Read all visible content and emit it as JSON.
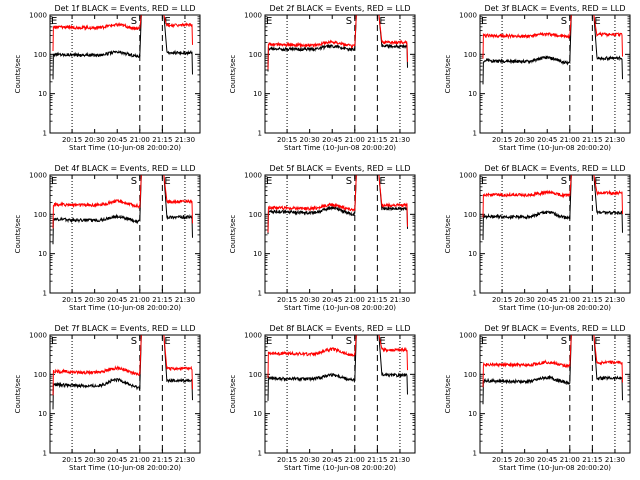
{
  "figure": {
    "background": "#ffffff",
    "ylabel": "Counts/sec",
    "xlabel": "Start Time (10-Jun-08 20:00:20)",
    "xtick_labels": [
      "20:15",
      "20:30",
      "20:45",
      "21:00",
      "21:15",
      "21:30"
    ],
    "ytick_labels": [
      "1",
      "10",
      "100",
      "1000"
    ],
    "marker_S": "S",
    "marker_E": "E",
    "events_color": "#000000",
    "lld_color": "#ff0000"
  },
  "chart_data": [
    {
      "type": "line",
      "title": "Det 1f BLACK = Events, RED = LLD",
      "xlim": [
        "20:00:20",
        "21:40"
      ],
      "ylim": [
        1,
        1000
      ],
      "yscale": "log",
      "grid": false,
      "series": [
        {
          "name": "Events",
          "values_level": [
            100,
            90,
            110
          ]
        },
        {
          "name": "LLD",
          "values_level": [
            500,
            450,
            550
          ]
        }
      ],
      "dotted_lines": [
        "20:15",
        "21:30"
      ],
      "dashed_lines": [
        "21:00",
        "21:15"
      ]
    },
    {
      "type": "line",
      "title": "Det 2f BLACK = Events, RED = LLD",
      "xlim": [
        "20:00:20",
        "21:40"
      ],
      "ylim": [
        1,
        1000
      ],
      "yscale": "log",
      "grid": false,
      "series": [
        {
          "name": "Events",
          "values_level": [
            140,
            130,
            160
          ]
        },
        {
          "name": "LLD",
          "values_level": [
            180,
            160,
            200
          ]
        }
      ],
      "dotted_lines": [
        "20:15",
        "21:30"
      ],
      "dashed_lines": [
        "21:00",
        "21:15"
      ]
    },
    {
      "type": "line",
      "title": "Det 3f BLACK = Events, RED = LLD",
      "xlim": [
        "20:00:20",
        "21:40"
      ],
      "ylim": [
        1,
        1000
      ],
      "yscale": "log",
      "grid": false,
      "series": [
        {
          "name": "Events",
          "values_level": [
            70,
            60,
            80
          ]
        },
        {
          "name": "LLD",
          "values_level": [
            300,
            280,
            320
          ]
        }
      ],
      "dotted_lines": [
        "20:15",
        "21:30"
      ],
      "dashed_lines": [
        "21:00",
        "21:15"
      ]
    },
    {
      "type": "line",
      "title": "Det 4f BLACK = Events, RED = LLD",
      "xlim": [
        "20:00:20",
        "21:40"
      ],
      "ylim": [
        1,
        1000
      ],
      "yscale": "log",
      "grid": false,
      "series": [
        {
          "name": "Events",
          "values_level": [
            75,
            65,
            85
          ]
        },
        {
          "name": "LLD",
          "values_level": [
            180,
            160,
            210
          ]
        }
      ],
      "dotted_lines": [
        "20:15",
        "21:30"
      ],
      "dashed_lines": [
        "21:00",
        "21:15"
      ]
    },
    {
      "type": "line",
      "title": "Det 5f BLACK = Events, RED = LLD",
      "xlim": [
        "20:00:20",
        "21:40"
      ],
      "ylim": [
        1,
        1000
      ],
      "yscale": "log",
      "grid": false,
      "series": [
        {
          "name": "Events",
          "values_level": [
            120,
            100,
            140
          ]
        },
        {
          "name": "LLD",
          "values_level": [
            150,
            130,
            170
          ]
        }
      ],
      "dotted_lines": [
        "20:15",
        "21:30"
      ],
      "dashed_lines": [
        "21:00",
        "21:15"
      ]
    },
    {
      "type": "line",
      "title": "Det 6f BLACK = Events, RED = LLD",
      "xlim": [
        "20:00:20",
        "21:40"
      ],
      "ylim": [
        1,
        1000
      ],
      "yscale": "log",
      "grid": false,
      "series": [
        {
          "name": "Events",
          "values_level": [
            90,
            80,
            110
          ]
        },
        {
          "name": "LLD",
          "values_level": [
            320,
            300,
            350
          ]
        }
      ],
      "dotted_lines": [
        "20:15",
        "21:30"
      ],
      "dashed_lines": [
        "21:00",
        "21:15"
      ]
    },
    {
      "type": "line",
      "title": "Det 7f BLACK = Events, RED = LLD",
      "xlim": [
        "20:00:20",
        "21:40"
      ],
      "ylim": [
        1,
        1000
      ],
      "yscale": "log",
      "grid": false,
      "series": [
        {
          "name": "Events",
          "values_level": [
            55,
            45,
            70
          ]
        },
        {
          "name": "LLD",
          "values_level": [
            120,
            100,
            140
          ]
        }
      ],
      "dotted_lines": [
        "20:15",
        "21:30"
      ],
      "dashed_lines": [
        "21:00",
        "21:15"
      ]
    },
    {
      "type": "line",
      "title": "Det 8f BLACK = Events, RED = LLD",
      "xlim": [
        "20:00:20",
        "21:40"
      ],
      "ylim": [
        1,
        1000
      ],
      "yscale": "log",
      "grid": false,
      "series": [
        {
          "name": "Events",
          "values_level": [
            80,
            70,
            95
          ]
        },
        {
          "name": "LLD",
          "values_level": [
            350,
            300,
            420
          ]
        }
      ],
      "dotted_lines": [
        "20:15",
        "21:30"
      ],
      "dashed_lines": [
        "21:00",
        "21:15"
      ]
    },
    {
      "type": "line",
      "title": "Det 9f BLACK = Events, RED = LLD",
      "xlim": [
        "20:00:20",
        "21:40"
      ],
      "ylim": [
        1,
        1000
      ],
      "yscale": "log",
      "grid": false,
      "series": [
        {
          "name": "Events",
          "values_level": [
            70,
            60,
            80
          ]
        },
        {
          "name": "LLD",
          "values_level": [
            180,
            160,
            200
          ]
        }
      ],
      "dotted_lines": [
        "20:15",
        "21:30"
      ],
      "dashed_lines": [
        "21:00",
        "21:15"
      ]
    }
  ]
}
